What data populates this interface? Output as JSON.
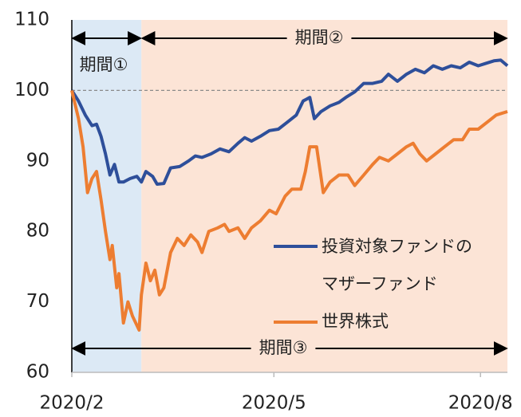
{
  "chart_data": {
    "type": "line",
    "xlim": [
      0,
      194
    ],
    "ylim": [
      60,
      110
    ],
    "xticks": [
      {
        "value": 0,
        "label": "2020/2"
      },
      {
        "value": 90,
        "label": "2020/5"
      },
      {
        "value": 182,
        "label": "2020/8"
      }
    ],
    "yticks": [
      60,
      70,
      80,
      90,
      100,
      110
    ],
    "reference_line": 100,
    "periods": [
      {
        "label": "期間①",
        "start": 0,
        "end": 31,
        "color": "#dce9f5"
      },
      {
        "label": "期間②",
        "start": 31,
        "end": 194,
        "color": "#fce4d6"
      },
      {
        "label": "期間③",
        "start": 0,
        "end": 194
      }
    ],
    "series": [
      {
        "name": "投資対象ファンドの\nマザーファンド",
        "color": "#2e4f9a",
        "x": [
          0,
          3,
          6,
          9,
          11,
          13,
          15,
          17,
          19,
          21,
          23,
          26,
          29,
          31,
          33,
          36,
          38,
          41,
          44,
          48,
          52,
          55,
          58,
          62,
          66,
          70,
          74,
          77,
          80,
          84,
          88,
          92,
          96,
          100,
          103,
          106,
          108,
          111,
          115,
          119,
          122,
          126,
          130,
          134,
          138,
          141,
          145,
          149,
          153,
          157,
          161,
          165,
          169,
          173,
          177,
          181,
          184,
          188,
          191,
          194
        ],
        "values": [
          100,
          98.5,
          96.5,
          95,
          95.2,
          93.5,
          91,
          88,
          89.5,
          87,
          87,
          87.5,
          87.8,
          87,
          88.5,
          87.8,
          86.7,
          86.8,
          89,
          89.2,
          90,
          90.7,
          90.5,
          91,
          91.7,
          91.3,
          92.5,
          93.3,
          92.8,
          93.5,
          94.3,
          94.5,
          95.5,
          96.5,
          98.5,
          99,
          96,
          97,
          97.8,
          98.3,
          99,
          99.8,
          101,
          101,
          101.3,
          102.3,
          101.3,
          102.3,
          103,
          102.5,
          103.5,
          103,
          103.5,
          103.2,
          104,
          103.5,
          103.8,
          104.2,
          104.3,
          103.5
        ]
      },
      {
        "name": "世界株式",
        "color": "#ed7d31",
        "x": [
          0,
          3,
          5,
          7,
          9,
          11,
          13,
          15,
          17,
          18,
          20,
          21,
          23,
          25,
          27,
          30,
          31,
          33,
          35,
          37,
          39,
          41,
          44,
          47,
          50,
          53,
          56,
          58,
          61,
          65,
          68,
          70,
          74,
          77,
          80,
          84,
          88,
          91,
          95,
          98,
          102,
          104,
          106,
          109,
          112,
          115,
          119,
          123,
          126,
          130,
          134,
          137,
          141,
          145,
          149,
          152,
          155,
          158,
          162,
          166,
          170,
          174,
          177,
          181,
          185,
          189,
          194
        ],
        "values": [
          100,
          96,
          92,
          85.5,
          87.5,
          88.5,
          84.5,
          80,
          76,
          78,
          72,
          74,
          67,
          70,
          68,
          66,
          71,
          75.5,
          73,
          74.5,
          71,
          72,
          77,
          79,
          78,
          79.5,
          78.5,
          77,
          80,
          80.5,
          81,
          80,
          80.5,
          79,
          80.5,
          81.5,
          83,
          82.5,
          85,
          86,
          86,
          88.5,
          92,
          92,
          85.5,
          87,
          88,
          88,
          86.5,
          88,
          89.5,
          90.5,
          90,
          91,
          92,
          92.5,
          91,
          90,
          91,
          92,
          93,
          93,
          94.5,
          94.5,
          95.5,
          96.5,
          97
        ]
      }
    ]
  }
}
